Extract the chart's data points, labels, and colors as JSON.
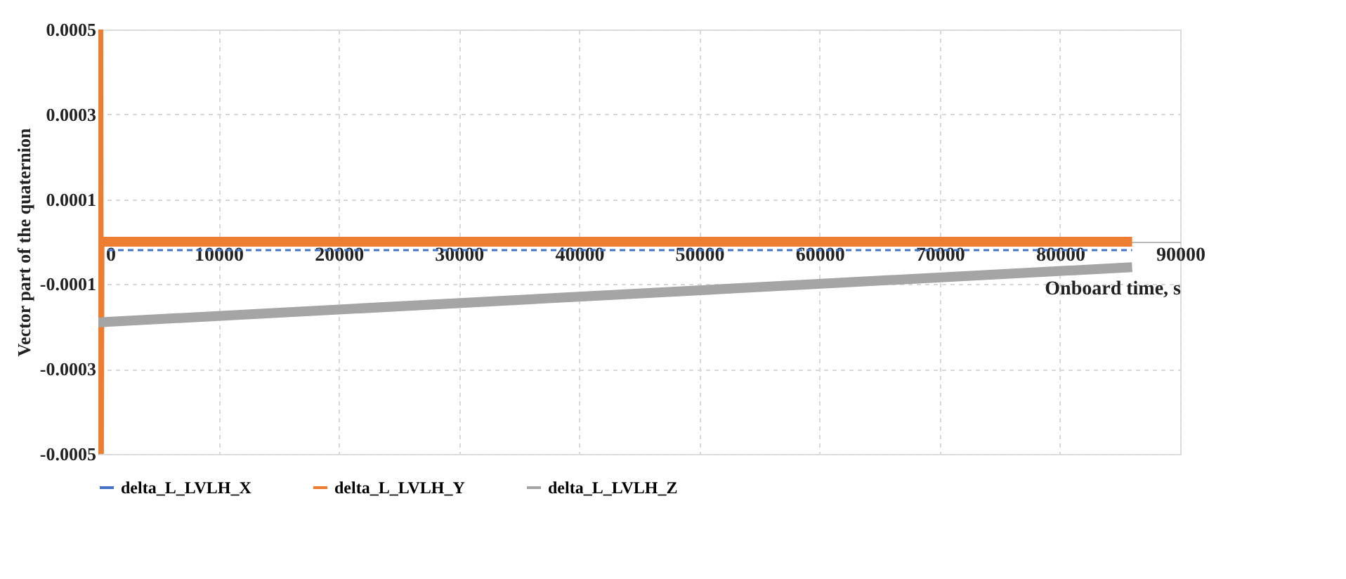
{
  "chart_data": {
    "type": "line",
    "xlabel": "Onboard time, s",
    "ylabel": "Vector part of the quaternion",
    "xlim": [
      0,
      90000
    ],
    "xticks": [
      0,
      10000,
      20000,
      30000,
      40000,
      50000,
      60000,
      70000,
      80000,
      90000
    ],
    "ylim": [
      -0.0005,
      0.0005
    ],
    "yticks": [
      -0.0005,
      -0.0003,
      -0.0001,
      0.0001,
      0.0003,
      0.0005
    ],
    "grid": true,
    "legend": "bottom",
    "series": [
      {
        "name": "delta_L_LVLH_X",
        "color": "#4472c4",
        "line_style": "dashed",
        "x": [
          0,
          86000
        ],
        "values": [
          -2e-05,
          -2e-05
        ]
      },
      {
        "name": "delta_L_LVLH_Y",
        "color": "#ed7d31",
        "line_style": "solid",
        "x": [
          0,
          50,
          100,
          86000
        ],
        "values": [
          0.0005,
          -0.0005,
          0,
          0
        ]
      },
      {
        "name": "delta_L_LVLH_Z",
        "color": "#a5a5a5",
        "line_style": "solid",
        "x": [
          0,
          86000
        ],
        "values": [
          -0.00019,
          -6e-05
        ]
      }
    ]
  }
}
